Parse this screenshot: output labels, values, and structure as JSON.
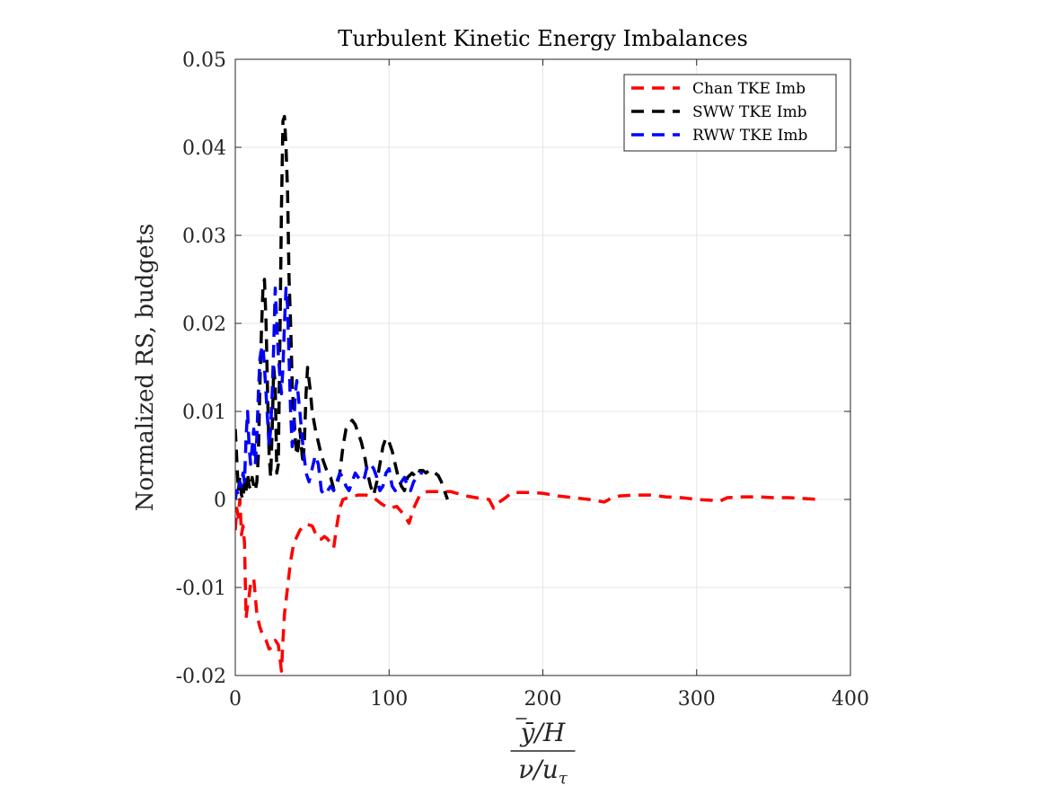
{
  "chart_data": {
    "type": "line",
    "title": "Turbulent Kinetic Energy Imbalances",
    "ylabel": "Normalized RS, budgets",
    "xlabel_num": "ȳ/H",
    "xlabel_den": "ν/u",
    "xlabel_den_sub": "τ",
    "xlim": [
      0,
      400
    ],
    "ylim": [
      -0.02,
      0.05
    ],
    "xticks": [
      0,
      100,
      200,
      300,
      400
    ],
    "xtick_labels": [
      "0",
      "100",
      "200",
      "300",
      "400"
    ],
    "yticks": [
      -0.02,
      -0.01,
      0,
      0.01,
      0.02,
      0.03,
      0.04,
      0.05
    ],
    "ytick_labels": [
      "-0.02",
      "-0.01",
      "0",
      "0.01",
      "0.02",
      "0.03",
      "0.04",
      "0.05"
    ],
    "grid": true,
    "legend_position": "top-right",
    "series": [
      {
        "name": "Chan TKE Imb",
        "color": "#ff0000",
        "style": "dashed",
        "x": [
          0,
          1,
          2,
          3,
          4,
          5,
          6,
          7,
          8,
          9,
          10,
          12,
          14,
          16,
          18,
          20,
          22,
          24,
          26,
          28,
          29,
          30,
          31,
          32,
          34,
          36,
          38,
          42,
          46,
          50,
          52,
          54,
          56,
          58,
          60,
          62,
          64,
          66,
          68,
          70,
          75,
          80,
          85,
          90,
          95,
          100,
          105,
          110,
          113,
          116,
          120,
          125,
          130,
          140,
          150,
          160,
          165,
          168,
          170,
          175,
          180,
          190,
          200,
          210,
          220,
          230,
          240,
          245,
          250,
          260,
          270,
          280,
          290,
          300,
          310,
          315,
          320,
          330,
          340,
          350,
          360,
          370,
          380
        ],
        "y": [
          -0.0035,
          -0.001,
          -0.002,
          0.0,
          -0.004,
          -0.003,
          -0.005,
          -0.0135,
          -0.012,
          -0.011,
          -0.0095,
          -0.009,
          -0.013,
          -0.0145,
          -0.0155,
          -0.016,
          -0.017,
          -0.0168,
          -0.016,
          -0.0165,
          -0.018,
          -0.0195,
          -0.016,
          -0.013,
          -0.01,
          -0.007,
          -0.005,
          -0.0035,
          -0.0028,
          -0.003,
          -0.0038,
          -0.0045,
          -0.0045,
          -0.0042,
          -0.0045,
          -0.005,
          -0.0055,
          -0.003,
          -0.001,
          0.0,
          0.0003,
          0.0005,
          0.0005,
          0.0002,
          -0.0005,
          -0.001,
          -0.0008,
          -0.0018,
          -0.0027,
          -0.001,
          0.0005,
          0.0009,
          0.0009,
          0.0009,
          0.0004,
          0.0001,
          0.0,
          -0.001,
          -0.0005,
          0.0001,
          0.0008,
          0.0008,
          0.0007,
          0.0004,
          0.0002,
          0.0,
          -0.0003,
          0.0002,
          0.0004,
          0.0005,
          0.0005,
          0.0003,
          0.0002,
          0.0,
          -0.0001,
          -0.0002,
          0.0002,
          0.0003,
          0.0003,
          0.0002,
          0.0002,
          0.0001,
          0.0
        ]
      },
      {
        "name": "SWW TKE Imb",
        "color": "#000000",
        "style": "dashed",
        "x": [
          0,
          1,
          2,
          3,
          4,
          5,
          6,
          7,
          8,
          9,
          10,
          11,
          12,
          13,
          14,
          15,
          16,
          17,
          18,
          19,
          20,
          21,
          22,
          23,
          24,
          25,
          26,
          27,
          28,
          29,
          30,
          31,
          32,
          33,
          34,
          35,
          36,
          37,
          38,
          39,
          40,
          41,
          42,
          43,
          44,
          45,
          46,
          47,
          48,
          49,
          50,
          52,
          54,
          56,
          58,
          60,
          62,
          64,
          66,
          68,
          70,
          72,
          74,
          76,
          78,
          80,
          82,
          84,
          86,
          88,
          90,
          92,
          94,
          96,
          98,
          100,
          102,
          104,
          106,
          108,
          110,
          112,
          115,
          118,
          120,
          122,
          124,
          126,
          128,
          130,
          132,
          134,
          136,
          138
        ],
        "y": [
          0.008,
          0.0045,
          0.001,
          0.0025,
          0.0005,
          0.0,
          0.002,
          0.001,
          0.003,
          0.0015,
          0.0012,
          0.0025,
          0.0015,
          0.001,
          0.002,
          0.005,
          0.013,
          0.019,
          0.024,
          0.025,
          0.02,
          0.012,
          0.005,
          0.0025,
          0.008,
          0.015,
          0.013,
          0.003,
          0.004,
          0.018,
          0.033,
          0.043,
          0.0435,
          0.04,
          0.035,
          0.025,
          0.02,
          0.013,
          0.01,
          0.007,
          0.005,
          0.006,
          0.008,
          0.006,
          0.004,
          0.007,
          0.012,
          0.015,
          0.0135,
          0.012,
          0.01,
          0.008,
          0.0065,
          0.005,
          0.004,
          0.003,
          0.0025,
          0.0012,
          0.0015,
          0.003,
          0.006,
          0.008,
          0.0085,
          0.009,
          0.0085,
          0.0075,
          0.0065,
          0.005,
          0.003,
          0.0015,
          0.0005,
          0.002,
          0.004,
          0.006,
          0.007,
          0.0065,
          0.0055,
          0.004,
          0.0025,
          0.0015,
          0.001,
          0.0025,
          0.003,
          0.0025,
          0.0033,
          0.0033,
          0.003,
          0.0033,
          0.0033,
          0.003,
          0.0027,
          0.002,
          0.001,
          0.0
        ]
      },
      {
        "name": "RWW TKE Imb",
        "color": "#0000ff",
        "style": "dashed",
        "x": [
          0,
          1,
          2,
          3,
          4,
          5,
          6,
          7,
          8,
          9,
          10,
          11,
          12,
          13,
          14,
          15,
          16,
          17,
          18,
          19,
          20,
          21,
          22,
          23,
          24,
          25,
          26,
          27,
          28,
          29,
          30,
          31,
          32,
          33,
          34,
          35,
          36,
          37,
          38,
          39,
          40,
          42,
          44,
          46,
          48,
          50,
          52,
          54,
          56,
          58,
          60,
          62,
          64,
          66,
          68,
          70,
          72,
          74,
          76,
          78,
          80,
          82,
          84,
          86,
          88,
          90,
          92,
          94,
          96,
          98,
          100,
          102,
          104,
          106,
          108,
          110,
          112,
          114,
          116,
          118,
          120,
          122
        ],
        "y": [
          0.0,
          0.001,
          0.0005,
          0.002,
          0.0015,
          0.003,
          0.002,
          0.007,
          0.01,
          0.006,
          0.004,
          0.006,
          0.008,
          0.004,
          0.007,
          0.012,
          0.016,
          0.017,
          0.0175,
          0.015,
          0.012,
          0.009,
          0.006,
          0.008,
          0.012,
          0.0175,
          0.024,
          0.02,
          0.0165,
          0.014,
          0.012,
          0.015,
          0.02,
          0.024,
          0.022,
          0.016,
          0.01,
          0.006,
          0.008,
          0.012,
          0.0135,
          0.01,
          0.006,
          0.003,
          0.002,
          0.0035,
          0.005,
          0.004,
          0.001,
          0.0005,
          0.001,
          0.0015,
          0.001,
          0.002,
          0.003,
          0.0025,
          0.0015,
          0.001,
          0.002,
          0.003,
          0.0025,
          0.002,
          0.0025,
          0.004,
          0.004,
          0.0035,
          0.0025,
          0.001,
          0.0015,
          0.003,
          0.0035,
          0.0015,
          0.001,
          0.0015,
          0.002,
          0.0025,
          0.0015,
          0.001,
          0.002,
          0.0025,
          0.003,
          0.003
        ]
      }
    ]
  }
}
